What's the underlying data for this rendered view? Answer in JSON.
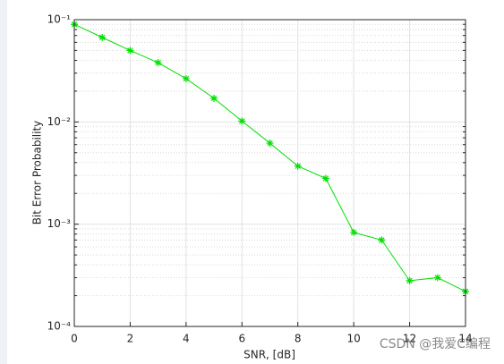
{
  "chart_data": {
    "type": "line",
    "xlabel": "SNR, [dB]",
    "ylabel": "Bit Error Probability",
    "x": [
      0,
      1,
      2,
      3,
      4,
      5,
      6,
      7,
      8,
      9,
      10,
      11,
      12,
      13,
      14
    ],
    "series": [
      {
        "color": "#00e000",
        "marker": "*",
        "values": [
          0.09,
          0.067,
          0.05,
          0.038,
          0.0265,
          0.017,
          0.0102,
          0.0062,
          0.0037,
          0.0028,
          0.00083,
          0.0007,
          0.00028,
          0.0003,
          0.00022
        ]
      }
    ],
    "xlim": [
      0,
      14
    ],
    "xticks": [
      0,
      2,
      4,
      6,
      8,
      10,
      12,
      14
    ],
    "ylim": [
      0.0001,
      0.1
    ],
    "yscale": "log",
    "yticks": [
      {
        "value": 0.0001,
        "label": "10⁻⁴"
      },
      {
        "value": 0.001,
        "label": "10⁻³"
      },
      {
        "value": 0.01,
        "label": "10⁻²"
      },
      {
        "value": 0.1,
        "label": "10⁻¹"
      }
    ],
    "grid": true,
    "minor_grid": true,
    "watermark": "CSDN @我爱C编程"
  }
}
